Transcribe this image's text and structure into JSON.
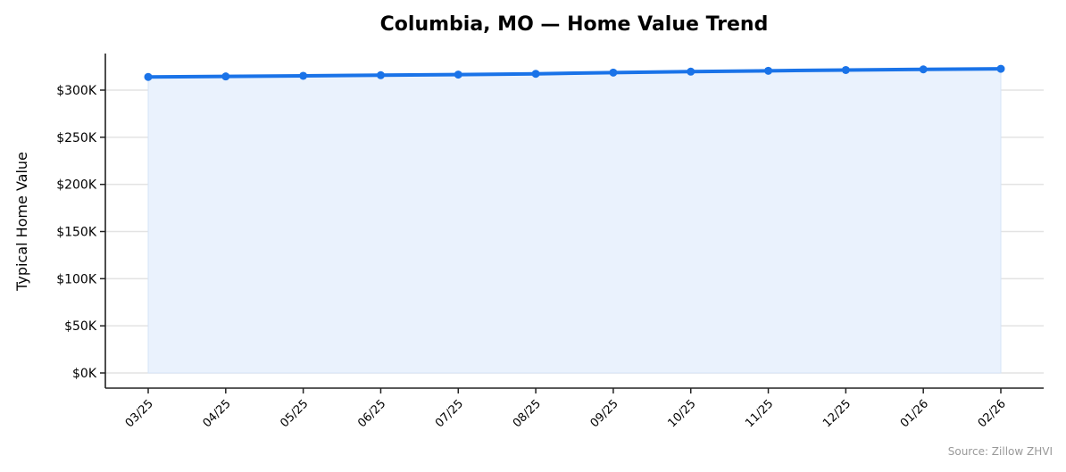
{
  "chart_data": {
    "type": "line",
    "title": "Columbia, MO — Home Value Trend",
    "xlabel": "",
    "ylabel": "Typical Home Value",
    "categories": [
      "03/25",
      "04/25",
      "05/25",
      "06/25",
      "07/25",
      "08/25",
      "09/25",
      "10/25",
      "11/25",
      "12/25",
      "01/26",
      "02/26"
    ],
    "series": [
      {
        "name": "Typical Home Value",
        "values": [
          314000,
          314500,
          315200,
          315800,
          316500,
          317300,
          318600,
          319600,
          320500,
          321300,
          322000,
          322600
        ],
        "color": "#1a73e8",
        "fill": "#eaf2fd"
      }
    ],
    "yticks": [
      0,
      50000,
      100000,
      150000,
      200000,
      250000,
      300000
    ],
    "ytick_labels": [
      "$0K",
      "$50K",
      "$100K",
      "$150K",
      "$200K",
      "$250K",
      "$300K"
    ],
    "ylim": [
      -16000,
      340000
    ],
    "grid": "horizontal",
    "legend": "none",
    "annotation": "Source: Zillow ZHVI"
  }
}
